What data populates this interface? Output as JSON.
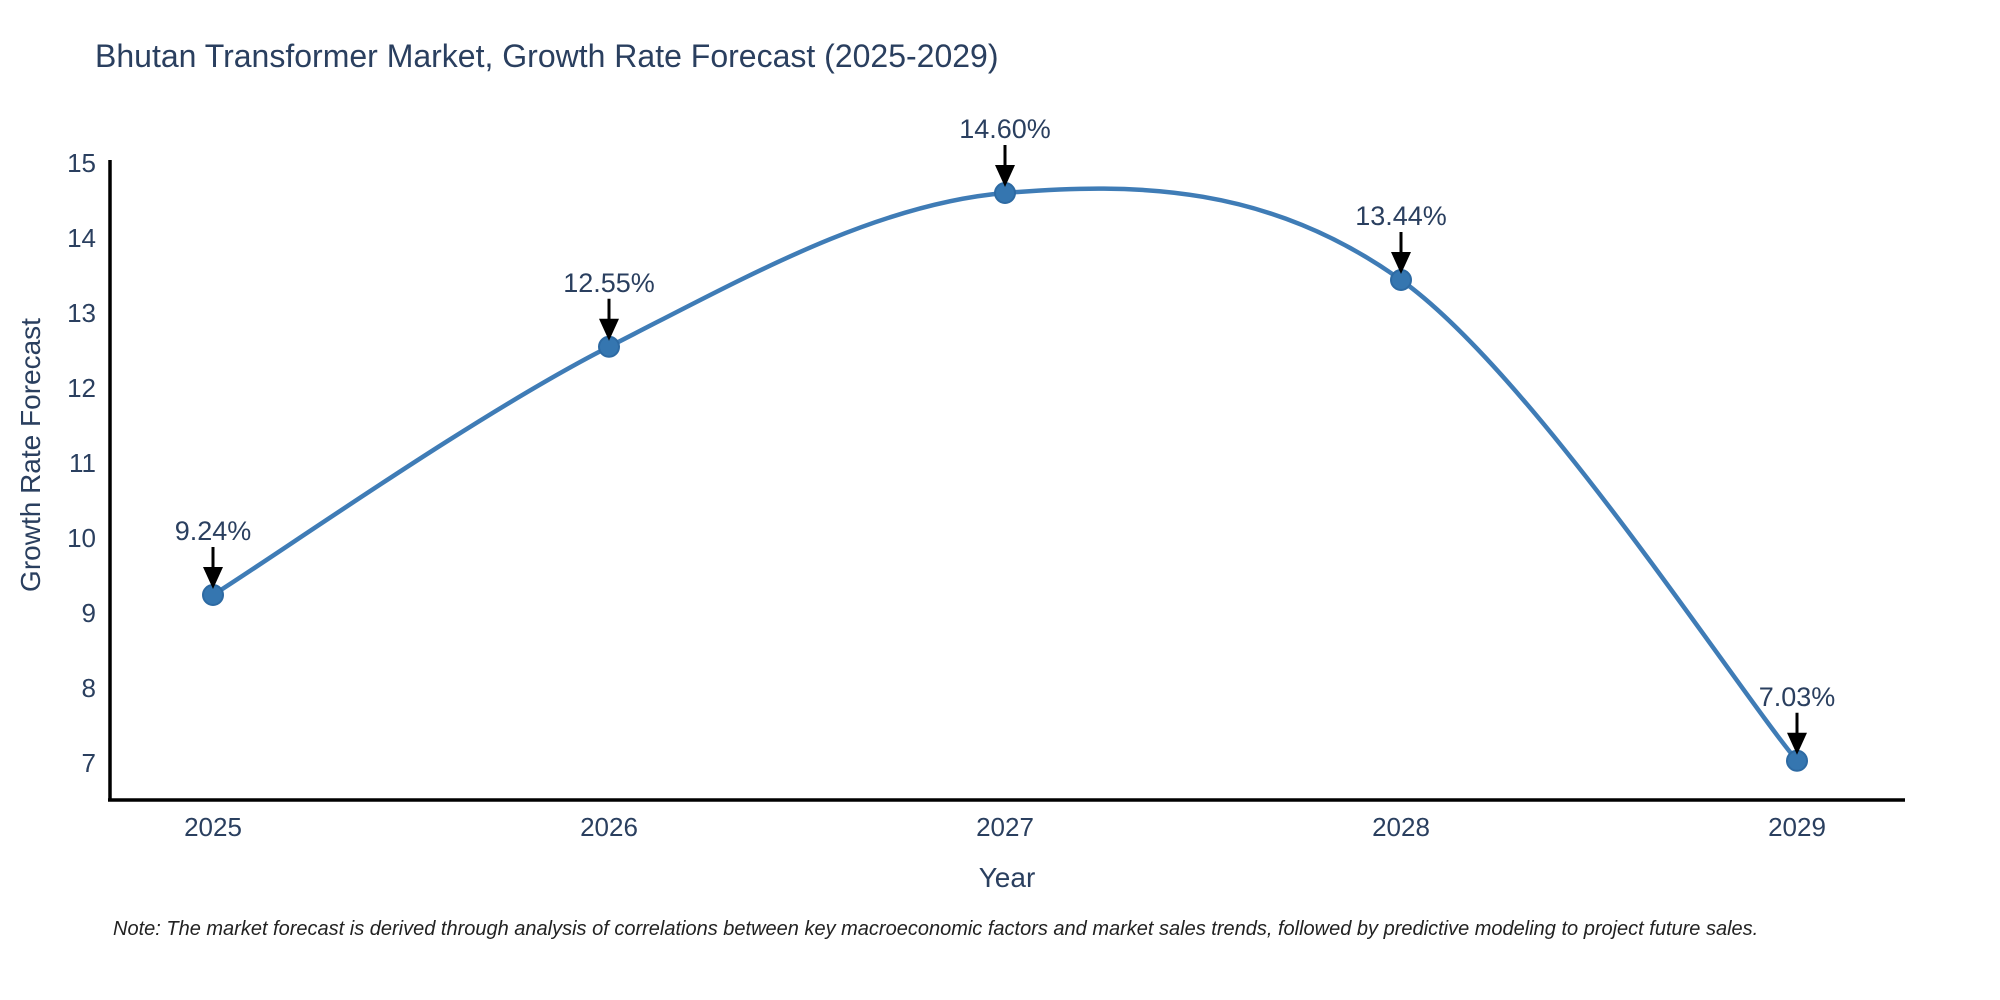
{
  "page": {
    "note": "Note: The market forecast is derived through analysis of correlations between key macroeconomic factors and market sales trends, followed by predictive modeling to project future sales."
  },
  "chart_data": {
    "type": "line",
    "title": "Bhutan Transformer Market, Growth Rate Forecast (2025-2029)",
    "xlabel": "Year",
    "ylabel": "Growth Rate Forecast",
    "categories": [
      "2025",
      "2026",
      "2027",
      "2028",
      "2029"
    ],
    "values": [
      9.24,
      12.55,
      14.6,
      13.44,
      7.03
    ],
    "point_labels": [
      "9.24%",
      "12.55%",
      "14.60%",
      "13.44%",
      "7.03%"
    ],
    "ylim": [
      7,
      15
    ],
    "yticks": [
      7,
      8,
      9,
      10,
      11,
      12,
      13,
      14,
      15
    ],
    "line_shape": "spline",
    "grid": false,
    "legend_position": "none",
    "annotation_style": "arrow-down-to-point",
    "colors": {
      "line": "#3f7cb6",
      "marker_fill": "#3576b0",
      "marker_edge": "#2d6aa3",
      "axis_line": "#000000",
      "tick_text": "#2a3f5f",
      "title_text": "#2a3f5f",
      "annotation_text": "#2a3f5f",
      "arrow": "#000000",
      "note_text": "#222222",
      "background": "#ffffff"
    }
  }
}
